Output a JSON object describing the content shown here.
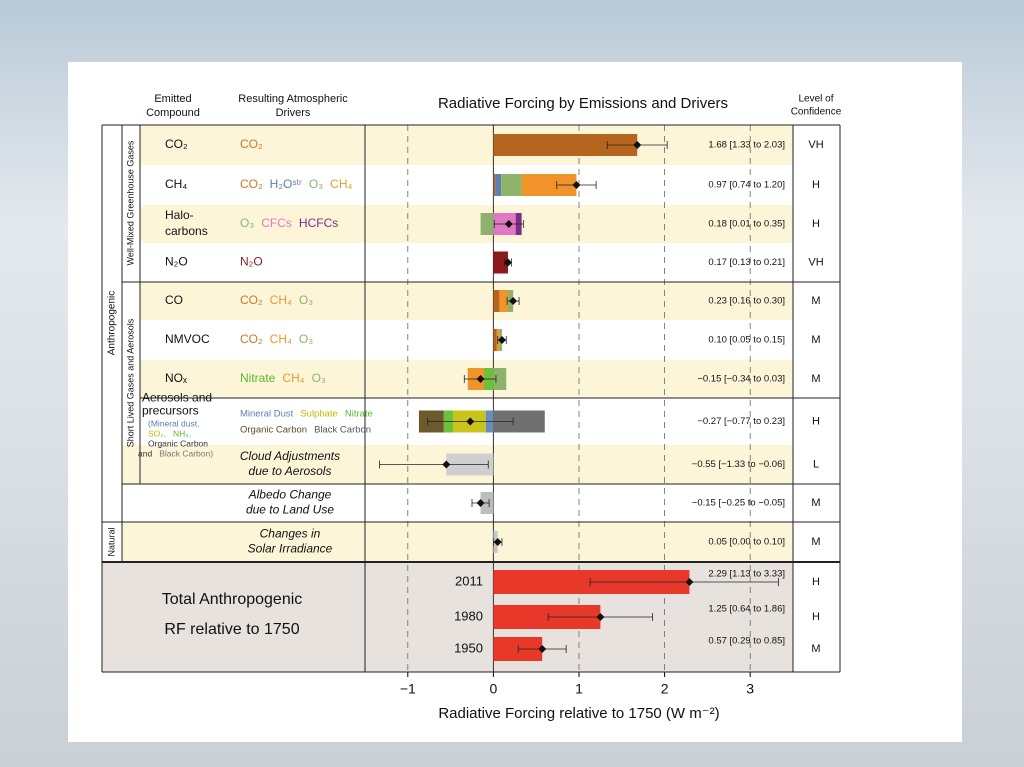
{
  "chart_data": {
    "type": "bar",
    "title": "Radiative Forcing by Emissions and Drivers",
    "compound_header": [
      "Emitted",
      "Compound"
    ],
    "drivers_header": [
      "Resulting Atmospheric",
      "Drivers"
    ],
    "confidence_header": [
      "Level of",
      "Confidence"
    ],
    "group_labels": [
      "Anthropogenic",
      "Natural",
      "Well-Mixed Greenhouse Gases",
      "Short Lived Gases and Aerosols"
    ],
    "xlabel": "Radiative Forcing relative to 1750 (W m⁻²)",
    "xlim": [
      -1.5,
      3.5
    ],
    "xticks": [
      {
        "value": -1,
        "label": "−1"
      },
      0,
      1,
      2,
      3
    ],
    "grid": true,
    "rows": [
      {
        "compound": [
          "CO₂"
        ],
        "drivers": [
          [
            {
              "text": "CO₂",
              "color": "#c8782a"
            }
          ]
        ],
        "segments": [
          {
            "value": 1.68,
            "color": "#b5651d"
          }
        ],
        "best": 1.68,
        "range": [
          1.33,
          2.03
        ],
        "value_label": "1.68 [1.33 to 2.03]",
        "confidence": "VH"
      },
      {
        "compound": [
          "CH₄"
        ],
        "drivers": [
          [
            {
              "text": "CO₂",
              "color": "#c8782a"
            },
            {
              "text": "H₂Oˢᵗʳ",
              "color": "#5b7fb0"
            },
            {
              "text": "O₃",
              "color": "#8db36b"
            },
            {
              "text": "CH₄",
              "color": "#e89a2a"
            }
          ]
        ],
        "segments": [
          {
            "value": 0.02,
            "color": "#b5651d"
          },
          {
            "value": 0.07,
            "color": "#5b7fb0"
          },
          {
            "value": 0.24,
            "color": "#8db36b"
          },
          {
            "value": 0.64,
            "color": "#f0932b"
          }
        ],
        "best": 0.97,
        "range": [
          0.74,
          1.2
        ],
        "value_label": "0.97 [0.74 to 1.20]",
        "confidence": "H"
      },
      {
        "compound": [
          "Halo-",
          "carbons"
        ],
        "drivers": [
          [
            {
              "text": "O₃",
              "color": "#8db36b"
            },
            {
              "text": "CFCs",
              "color": "#e377c2"
            },
            {
              "text": "HCFCs",
              "color": "#7b2d8e"
            }
          ]
        ],
        "segments": [
          {
            "value": -0.15,
            "color": "#8db36b"
          },
          {
            "value": 0.26,
            "color": "#e377c2"
          },
          {
            "value": 0.07,
            "color": "#7b2d8e"
          }
        ],
        "best": 0.18,
        "range": [
          0.01,
          0.35
        ],
        "value_label": "0.18 [0.01 to 0.35]",
        "confidence": "H"
      },
      {
        "compound": [
          "N₂O"
        ],
        "drivers": [
          [
            {
              "text": "N₂O",
              "color": "#8b1a1a"
            }
          ]
        ],
        "segments": [
          {
            "value": 0.17,
            "color": "#8b1a1a"
          }
        ],
        "best": 0.17,
        "range": [
          0.13,
          0.21
        ],
        "value_label": "0.17 [0.13 to 0.21]",
        "confidence": "VH"
      },
      {
        "compound": [
          "CO"
        ],
        "drivers": [
          [
            {
              "text": "CO₂",
              "color": "#c8782a"
            },
            {
              "text": "CH₄",
              "color": "#e89a2a"
            },
            {
              "text": "O₃",
              "color": "#8db36b"
            }
          ]
        ],
        "segments": [
          {
            "value": 0.07,
            "color": "#b5651d"
          },
          {
            "value": 0.1,
            "color": "#f0932b"
          },
          {
            "value": 0.06,
            "color": "#8db36b"
          }
        ],
        "best": 0.23,
        "range": [
          0.16,
          0.3
        ],
        "value_label": "0.23 [0.16 to 0.30]",
        "confidence": "M"
      },
      {
        "compound": [
          "NMVOC"
        ],
        "drivers": [
          [
            {
              "text": "CO₂",
              "color": "#c8782a"
            },
            {
              "text": "CH₄",
              "color": "#e89a2a"
            },
            {
              "text": "O₃",
              "color": "#8db36b"
            }
          ]
        ],
        "segments": [
          {
            "value": 0.04,
            "color": "#b5651d"
          },
          {
            "value": 0.03,
            "color": "#f0932b"
          },
          {
            "value": 0.03,
            "color": "#8db36b"
          }
        ],
        "best": 0.1,
        "range": [
          0.05,
          0.15
        ],
        "value_label": "0.10 [0.05 to 0.15]",
        "confidence": "M"
      },
      {
        "compound": [
          "NOₓ"
        ],
        "drivers": [
          [
            {
              "text": "Nitrate",
              "color": "#5cb82e"
            },
            {
              "text": "CH₄",
              "color": "#e89a2a"
            },
            {
              "text": "O₃",
              "color": "#8db36b"
            }
          ]
        ],
        "segments": [
          {
            "value": -0.11,
            "color": "#6fbf3a"
          },
          {
            "value": -0.19,
            "color": "#f0932b"
          },
          {
            "value": 0.15,
            "color": "#8db36b"
          }
        ],
        "best": -0.15,
        "range": [
          -0.34,
          0.03
        ],
        "value_label": "−0.15 [−0.34 to 0.03]",
        "confidence": "M"
      },
      {
        "compound": [
          "Aerosols and",
          "precursors"
        ],
        "compound_detail": [
          [
            {
              "text": "(Mineral dust,",
              "color": "#5b7fb0"
            }
          ],
          [
            {
              "text": "SO₂,",
              "color": "#c8b400"
            },
            {
              "text": "NH₃,",
              "color": "#5cb82e"
            }
          ],
          [
            {
              "text": "Organic Carbon",
              "color": "#333333"
            }
          ],
          [
            {
              "text": "and",
              "color": "#333333"
            },
            {
              "text": "Black Carbon)",
              "color": "#777777"
            }
          ]
        ],
        "drivers": [
          [
            {
              "text": "Mineral Dust",
              "color": "#5b7fb0"
            },
            {
              "text": "Sulphate",
              "color": "#c8b400"
            },
            {
              "text": "Nitrate",
              "color": "#5cb82e"
            }
          ],
          [
            {
              "text": "Organic Carbon",
              "color": "#5a4a20"
            },
            {
              "text": "Black Carbon",
              "color": "#555555"
            }
          ]
        ],
        "segments": [
          {
            "value": -0.09,
            "color": "#6b8cba"
          },
          {
            "value": -0.38,
            "color": "#c8c41a"
          },
          {
            "value": -0.11,
            "color": "#6fbf3a"
          },
          {
            "value": -0.29,
            "color": "#6b5a2e"
          },
          {
            "value": 0.6,
            "color": "#707070"
          }
        ],
        "best": -0.27,
        "range": [
          -0.77,
          0.23
        ],
        "value_label": "−0.27 [−0.77 to 0.23]",
        "confidence": "H"
      },
      {
        "compound": [
          "Cloud Adjustments",
          "due to Aerosols"
        ],
        "segments": [
          {
            "value": -0.55,
            "color": "#cfcfcf"
          }
        ],
        "best": -0.55,
        "range": [
          -1.33,
          -0.06
        ],
        "value_label": "−0.55 [−1.33 to −0.06]",
        "confidence": "L"
      },
      {
        "compound": [
          "Albedo Change",
          "due to Land Use"
        ],
        "segments": [
          {
            "value": -0.15,
            "color": "#bdbdbd"
          }
        ],
        "best": -0.15,
        "range": [
          -0.25,
          -0.05
        ],
        "value_label": "−0.15 [−0.25 to −0.05]",
        "confidence": "M"
      },
      {
        "compound": [
          "Changes in",
          "Solar Irradiance"
        ],
        "segments": [
          {
            "value": 0.05,
            "color": "#c8c8c8"
          }
        ],
        "best": 0.05,
        "range": [
          0.0,
          0.1
        ],
        "value_label": "0.05 [0.00 to 0.10]",
        "confidence": "M"
      }
    ],
    "total": {
      "label": [
        "Total Anthropogenic",
        "RF relative to 1750"
      ],
      "color": "#e8382a",
      "categories": [
        "2011",
        "1980",
        "1950"
      ],
      "values": [
        2.29,
        1.25,
        0.57
      ],
      "ranges": [
        [
          1.13,
          3.33
        ],
        [
          0.64,
          1.86
        ],
        [
          0.29,
          0.85
        ]
      ],
      "value_labels": [
        "2.29 [1.13 to 3.33]",
        "1.25 [0.64 to 1.86]",
        "0.57 [0.29 to 0.85]"
      ],
      "confidence": [
        "H",
        "H",
        "M"
      ]
    }
  }
}
